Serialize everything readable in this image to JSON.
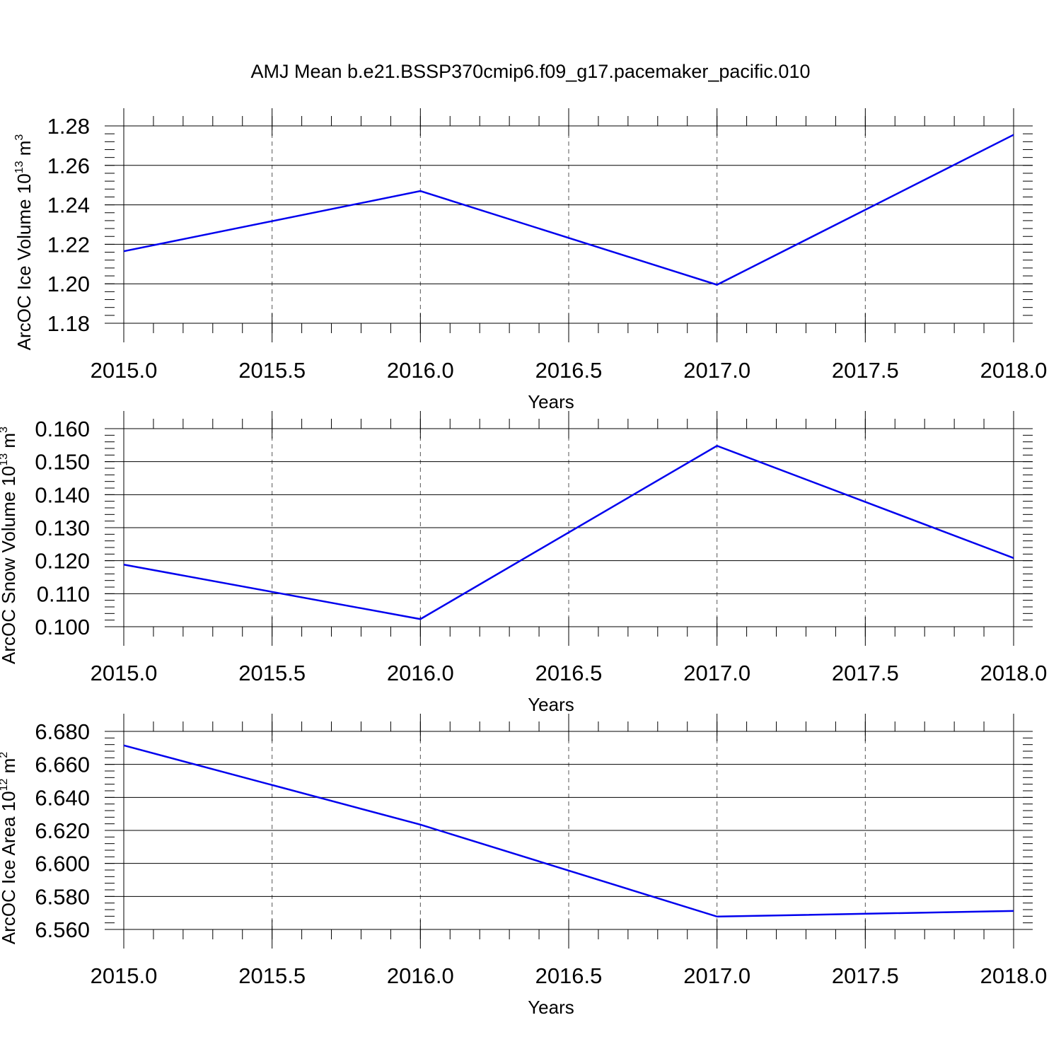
{
  "title": "AMJ Mean b.e21.BSSP370cmip6.f09_g17.pacemaker_pacific.010",
  "line_color": "#0000ee",
  "chart_data": [
    {
      "type": "line",
      "xlabel": "Years",
      "ylabel": "ArcOC Ice Volume 10",
      "ylabel_exp": "13",
      "ylabel_unit": " m",
      "ylabel_unit_exp": "3",
      "xlim": [
        2015.0,
        2018.0
      ],
      "ylim": [
        1.18,
        1.28
      ],
      "xticks": [
        2015.0,
        2015.5,
        2016.0,
        2016.5,
        2017.0,
        2017.5,
        2018.0
      ],
      "xtick_labels": [
        "2015.0",
        "2015.5",
        "2016.0",
        "2016.5",
        "2017.0",
        "2017.5",
        "2018.0"
      ],
      "yticks": [
        1.18,
        1.2,
        1.22,
        1.24,
        1.26,
        1.28
      ],
      "ytick_labels": [
        "1.18",
        "1.20",
        "1.22",
        "1.24",
        "1.26",
        "1.28"
      ],
      "x": [
        2015.0,
        2016.0,
        2017.0,
        2018.0
      ],
      "y": [
        1.2165,
        1.247,
        1.1995,
        1.2755
      ]
    },
    {
      "type": "line",
      "xlabel": "Years",
      "ylabel": "ArcOC Snow Volume 10",
      "ylabel_exp": "13",
      "ylabel_unit": " m",
      "ylabel_unit_exp": "3",
      "xlim": [
        2015.0,
        2018.0
      ],
      "ylim": [
        0.1,
        0.16
      ],
      "xticks": [
        2015.0,
        2015.5,
        2016.0,
        2016.5,
        2017.0,
        2017.5,
        2018.0
      ],
      "xtick_labels": [
        "2015.0",
        "2015.5",
        "2016.0",
        "2016.5",
        "2017.0",
        "2017.5",
        "2018.0"
      ],
      "yticks": [
        0.1,
        0.11,
        0.12,
        0.13,
        0.14,
        0.15,
        0.16
      ],
      "ytick_labels": [
        "0.100",
        "0.110",
        "0.120",
        "0.130",
        "0.140",
        "0.150",
        "0.160"
      ],
      "x": [
        2015.0,
        2016.0,
        2017.0,
        2018.0
      ],
      "y": [
        0.1188,
        0.1023,
        0.1548,
        0.1208
      ]
    },
    {
      "type": "line",
      "xlabel": "Years",
      "ylabel": "ArcOC Ice Area 10",
      "ylabel_exp": "12",
      "ylabel_unit": " m",
      "ylabel_unit_exp": "2",
      "xlim": [
        2015.0,
        2018.0
      ],
      "ylim": [
        6.56,
        6.68
      ],
      "xticks": [
        2015.0,
        2015.5,
        2016.0,
        2016.5,
        2017.0,
        2017.5,
        2018.0
      ],
      "xtick_labels": [
        "2015.0",
        "2015.5",
        "2016.0",
        "2016.5",
        "2017.0",
        "2017.5",
        "2018.0"
      ],
      "yticks": [
        6.56,
        6.58,
        6.6,
        6.62,
        6.64,
        6.66,
        6.68
      ],
      "ytick_labels": [
        "6.560",
        "6.580",
        "6.600",
        "6.620",
        "6.640",
        "6.660",
        "6.680"
      ],
      "x": [
        2015.0,
        2016.0,
        2017.0,
        2018.0
      ],
      "y": [
        6.6715,
        6.6235,
        6.5678,
        6.5712
      ]
    }
  ]
}
